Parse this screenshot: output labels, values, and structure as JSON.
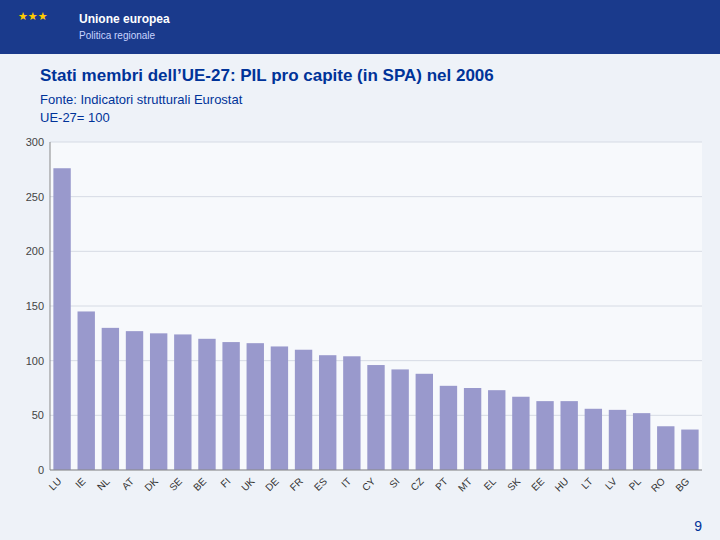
{
  "chart_data": {
    "type": "bar",
    "title": "Stati membri dell’UE-27: PIL pro capite (in SPA) nel 2006",
    "subtitle": [
      "Fonte: Indicatori strutturali Eurostat",
      "UE-27= 100"
    ],
    "annotations": [
      "★★★",
      "Unione europea",
      "Politica regionale",
      "9"
    ],
    "categories": [
      "LU",
      "IE",
      "NL",
      "AT",
      "DK",
      "SE",
      "BE",
      "FI",
      "UK",
      "DE",
      "FR",
      "ES",
      "IT",
      "CY",
      "SI",
      "CZ",
      "PT",
      "MT",
      "EL",
      "SK",
      "EE",
      "HU",
      "LT",
      "LV",
      "PL",
      "RO",
      "BG"
    ],
    "values": [
      276,
      145,
      130,
      127,
      125,
      124,
      120,
      117,
      116,
      113,
      110,
      105,
      104,
      96,
      92,
      88,
      77,
      75,
      73,
      67,
      63,
      63,
      56,
      55,
      52,
      40,
      37
    ],
    "color": "#9999cc",
    "ylim": [
      0,
      300
    ],
    "yticks": [
      0,
      50,
      100,
      150,
      200,
      250,
      300
    ],
    "grid": true
  }
}
